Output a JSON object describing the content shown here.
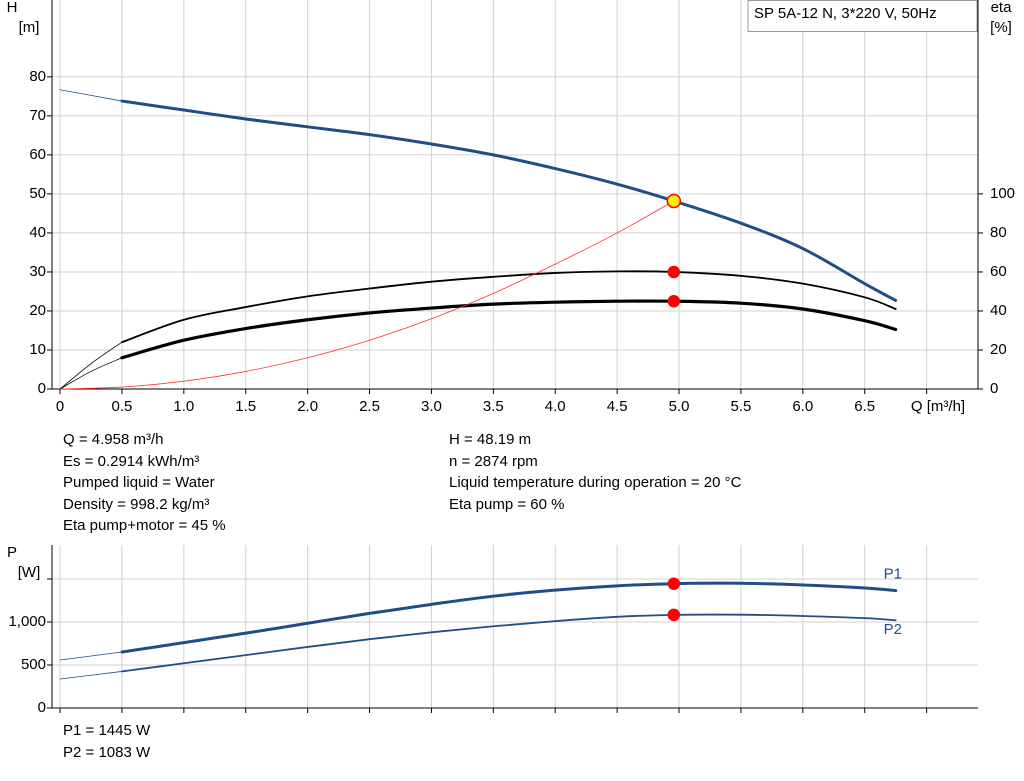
{
  "chart_data": [
    {
      "type": "line",
      "title": "SP 5A-12 N, 3*220 V, 50Hz",
      "y_label": "H",
      "y_unit": "[m]",
      "y2_label": "eta",
      "y2_unit": "[%]",
      "x_label": "Q [m³/h]",
      "xlim": [
        -0.065,
        7.415
      ],
      "xticks": [
        0,
        0.5,
        {
          "value": 1,
          "label": "1.0"
        },
        1.5,
        {
          "value": 2,
          "label": "2.0"
        },
        2.5,
        {
          "value": 3,
          "label": "3.0"
        },
        3.5,
        {
          "value": 4,
          "label": "4.0"
        },
        4.5,
        {
          "value": 5,
          "label": "5.0"
        },
        5.5,
        {
          "value": 6,
          "label": "6.0"
        },
        6.5,
        {
          "value": 7,
          "label": null
        }
      ],
      "ylim": [
        0,
        99.7
      ],
      "yticks": [
        0,
        10,
        20,
        30,
        40,
        50,
        60,
        70,
        80
      ],
      "y2lim": [
        0,
        199.4
      ],
      "y2ticks": [
        0,
        20,
        40,
        60,
        80,
        100
      ],
      "grid": true,
      "series": [
        {
          "x": [
            0,
            0.5
          ],
          "values": [
            76.7,
            73.8
          ],
          "color": "#1f4e87",
          "width": 0.8
        },
        {
          "x": [
            0.5,
            1,
            1.5,
            2,
            2.5,
            3,
            3.5,
            4,
            4.5,
            4.958,
            5.5,
            6,
            6.5,
            6.75
          ],
          "values": [
            73.8,
            71.5,
            69.2,
            67.2,
            65.2,
            62.8,
            60,
            56.5,
            52.5,
            48.19,
            42.5,
            36,
            27,
            22.7
          ],
          "color": "#1f4e87",
          "width": 3
        },
        {
          "x": [
            0,
            0.25,
            0.5
          ],
          "values": [
            0,
            13,
            24
          ],
          "color": "#000000",
          "width": 0.8,
          "axis": "y2"
        },
        {
          "x": [
            0.5,
            1,
            1.5,
            2,
            2.5,
            3,
            3.5,
            4,
            4.5,
            4.958,
            5.5,
            6,
            6.5,
            6.75
          ],
          "values": [
            24,
            35.5,
            42,
            47.5,
            51.5,
            55,
            57.5,
            59.5,
            60.3,
            60,
            58,
            54,
            47,
            41
          ],
          "color": "#000000",
          "width": 1.8,
          "axis": "y2"
        },
        {
          "x": [
            0,
            0.25,
            0.5
          ],
          "values": [
            0,
            9,
            16
          ],
          "color": "#000000",
          "width": 0.8,
          "axis": "y2"
        },
        {
          "x": [
            0.5,
            1,
            1.5,
            2,
            2.5,
            3,
            3.5,
            4,
            4.5,
            4.958,
            5.5,
            6,
            6.5,
            6.75
          ],
          "values": [
            16,
            25,
            31,
            35.5,
            39,
            41.5,
            43.5,
            44.5,
            45,
            45,
            44,
            41,
            35,
            30.5
          ],
          "color": "#000000",
          "width": 3.2,
          "axis": "y2"
        },
        {
          "x": [
            0,
            0.5,
            1,
            1.5,
            2,
            2.5,
            3,
            3.5,
            4,
            4.5,
            4.958
          ],
          "values": [
            0,
            0.5,
            2,
            4.5,
            8,
            12.5,
            18,
            24.5,
            32,
            40,
            48.19
          ],
          "color": "#ff3030",
          "width": 0.8
        },
        {
          "x": [
            4.958
          ],
          "values": [
            60
          ],
          "color": "#ff0000",
          "marker": true,
          "axis": "y2"
        },
        {
          "x": [
            4.958
          ],
          "values": [
            45
          ],
          "color": "#ff0000",
          "marker": true,
          "axis": "y2"
        },
        {
          "x": [
            4.958
          ],
          "values": [
            48.19
          ],
          "color": "#ffee00",
          "marker": true
        }
      ]
    },
    {
      "type": "line",
      "y_label": "P",
      "y_unit": "[W]",
      "xlim": [
        -0.065,
        7.415
      ],
      "xticks": [
        0,
        0.5,
        1,
        1.5,
        2,
        2.5,
        3,
        3.5,
        4,
        4.5,
        5,
        5.5,
        6,
        6.5,
        7
      ],
      "ylim": [
        0,
        1895
      ],
      "yticks": [
        0,
        500,
        {
          "value": 1000,
          "label": "1,000"
        },
        {
          "value": 1500,
          "label": null
        }
      ],
      "grid": true,
      "series": [
        {
          "x": [
            0,
            0.5
          ],
          "values": [
            558,
            651
          ],
          "color": "#1f4e87",
          "width": 0.8
        },
        {
          "name": "P1",
          "x": [
            0.5,
            1,
            1.5,
            2,
            2.5,
            3,
            3.5,
            4,
            4.5,
            4.958,
            5.5,
            6,
            6.5,
            6.75
          ],
          "values": [
            651,
            760,
            870,
            985,
            1100,
            1205,
            1300,
            1370,
            1420,
            1445,
            1450,
            1430,
            1395,
            1365
          ],
          "color": "#1f4e87",
          "width": 3
        },
        {
          "x": [
            0,
            0.5
          ],
          "values": [
            337,
            425
          ],
          "color": "#1f4e87",
          "width": 0.8
        },
        {
          "name": "P2",
          "x": [
            0.5,
            1,
            1.5,
            2,
            2.5,
            3,
            3.5,
            4,
            4.5,
            4.958,
            5.5,
            6,
            6.5,
            6.75
          ],
          "values": [
            425,
            520,
            615,
            710,
            800,
            880,
            950,
            1010,
            1060,
            1083,
            1085,
            1070,
            1045,
            1020
          ],
          "color": "#1f4e87",
          "width": 1.8
        },
        {
          "x": [
            4.958
          ],
          "values": [
            1445
          ],
          "color": "#ff0000",
          "marker": true
        },
        {
          "x": [
            4.958
          ],
          "values": [
            1083
          ],
          "color": "#ff0000",
          "marker": true
        }
      ]
    }
  ],
  "info": {
    "left": [
      "Q = 4.958 m³/h",
      "Es = 0.2914 kWh/m³",
      "Pumped liquid = Water",
      "Density = 998.2 kg/m³",
      "Eta pump+motor = 45 %"
    ],
    "right": [
      "H = 48.19 m",
      "n = 2874 rpm",
      "Liquid temperature during operation = 20 °C",
      "Eta pump = 60 %"
    ],
    "power": [
      "P1 = 1445 W",
      "P2 = 1083 W"
    ]
  }
}
